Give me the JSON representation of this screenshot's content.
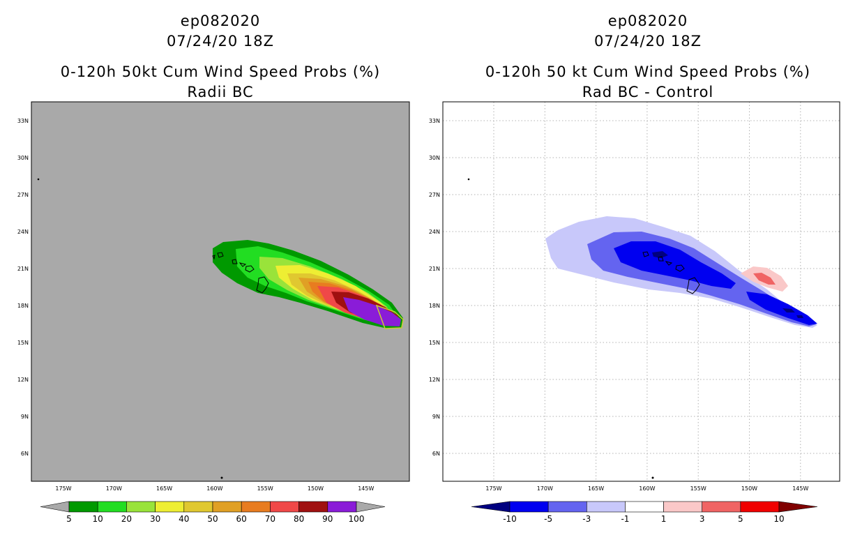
{
  "left_panel": {
    "title_line1": "ep082020",
    "title_line2": "07/24/20 18Z",
    "title_line3": "0-120h 50kt Cum Wind Speed Probs (%)",
    "title_line4": "Radii BC",
    "background_color": "#a9a9a9",
    "colorbar": {
      "colors": [
        "#009900",
        "#22dd22",
        "#99e33a",
        "#eeee33",
        "#e0c830",
        "#e0a025",
        "#e87c20",
        "#f04848",
        "#a01010",
        "#8a1cd8"
      ],
      "labels": [
        "5",
        "10",
        "20",
        "30",
        "40",
        "50",
        "60",
        "70",
        "80",
        "90",
        "100"
      ]
    }
  },
  "right_panel": {
    "title_line1": "ep082020",
    "title_line2": "07/24/20 18Z",
    "title_line3": "0-120h 50 kt Cum Wind Speed Probs (%)",
    "title_line4": "Rad BC - Control",
    "background_color": "#ffffff",
    "colorbar": {
      "colors": [
        "#000080",
        "#0000f0",
        "#6464f0",
        "#c8c8fa",
        "#ffffff",
        "#fac8c8",
        "#f06464",
        "#f00000",
        "#800000"
      ],
      "labels": [
        "-10",
        "-5",
        "-3",
        "-1",
        "1",
        "3",
        "5",
        "10"
      ]
    }
  },
  "map": {
    "lat_labels": [
      "33N",
      "30N",
      "27N",
      "24N",
      "21N",
      "18N",
      "15N",
      "12N",
      "9N",
      "6N"
    ],
    "lon_labels": [
      "175W",
      "170W",
      "165W",
      "160W",
      "155W",
      "150W",
      "145W"
    ]
  }
}
